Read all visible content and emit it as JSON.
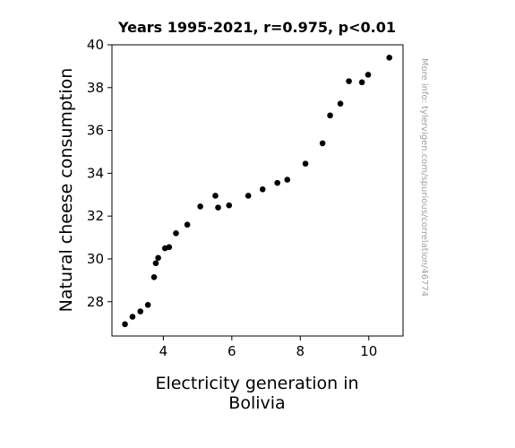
{
  "chart_data": {
    "type": "scatter",
    "title": "Years 1995-2021, r=0.975, p<0.01",
    "xlabel_lines": [
      "Electricity generation in",
      "Bolivia"
    ],
    "ylabel": "Natural cheese consumption",
    "watermark": "More info: tylervigen.com/spurious/correlation/46774",
    "xlim": [
      2.5,
      11.0
    ],
    "ylim": [
      26.4,
      40.0
    ],
    "xticks": [
      4,
      6,
      8,
      10
    ],
    "yticks": [
      28,
      30,
      32,
      34,
      36,
      38,
      40
    ],
    "grid": false,
    "point_color": "#000000",
    "points": [
      {
        "x": 2.88,
        "y": 26.95
      },
      {
        "x": 3.1,
        "y": 27.3
      },
      {
        "x": 3.33,
        "y": 27.55
      },
      {
        "x": 3.55,
        "y": 27.85
      },
      {
        "x": 3.73,
        "y": 29.15
      },
      {
        "x": 3.78,
        "y": 29.8
      },
      {
        "x": 3.85,
        "y": 30.05
      },
      {
        "x": 4.05,
        "y": 30.5
      },
      {
        "x": 4.17,
        "y": 30.55
      },
      {
        "x": 4.37,
        "y": 31.2
      },
      {
        "x": 4.7,
        "y": 31.6
      },
      {
        "x": 5.08,
        "y": 32.45
      },
      {
        "x": 5.52,
        "y": 32.95
      },
      {
        "x": 5.6,
        "y": 32.4
      },
      {
        "x": 5.92,
        "y": 32.5
      },
      {
        "x": 6.48,
        "y": 32.95
      },
      {
        "x": 6.9,
        "y": 33.25
      },
      {
        "x": 7.33,
        "y": 33.55
      },
      {
        "x": 7.62,
        "y": 33.7
      },
      {
        "x": 8.15,
        "y": 34.45
      },
      {
        "x": 8.65,
        "y": 35.4
      },
      {
        "x": 8.87,
        "y": 36.7
      },
      {
        "x": 9.17,
        "y": 37.25
      },
      {
        "x": 9.42,
        "y": 38.3
      },
      {
        "x": 9.8,
        "y": 38.25
      },
      {
        "x": 9.98,
        "y": 38.6
      },
      {
        "x": 10.6,
        "y": 39.4
      }
    ]
  }
}
